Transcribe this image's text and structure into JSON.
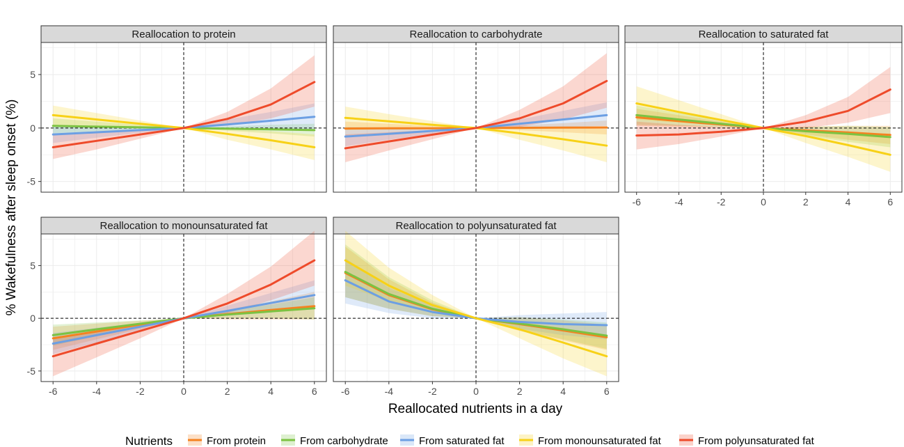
{
  "chart_data": {
    "type": "line",
    "ylabel": "% Wakefulness after sleep onset (%)",
    "xlabel": "Reallocated nutrients in a day",
    "xlim": [
      -6,
      6
    ],
    "ylim": [
      -6,
      8
    ],
    "x_ticks": [
      -6,
      -4,
      -2,
      0,
      2,
      4,
      6
    ],
    "y_ticks": [
      -5,
      0,
      5
    ],
    "grid": true,
    "reference_lines": {
      "x": 0,
      "y": 0,
      "style": "dashed"
    },
    "legend": {
      "title": "Nutrients",
      "position": "bottom",
      "entries": [
        {
          "name": "From protein",
          "color": "#F58220"
        },
        {
          "name": "From carbohydrate",
          "color": "#7CC242"
        },
        {
          "name": "From saturated fat",
          "color": "#6C9FE3"
        },
        {
          "name": "From monounsaturated fat",
          "color": "#F7D117"
        },
        {
          "name": "From polyunsaturated fat",
          "color": "#EE4B2B"
        }
      ]
    },
    "x": [
      -6,
      -4,
      -2,
      0,
      2,
      4,
      6
    ],
    "panels": [
      {
        "title": "Reallocation to protein",
        "series": [
          {
            "name": "From carbohydrate",
            "color": "#7CC242",
            "values": [
              0.2,
              0.13,
              0.06,
              0,
              -0.06,
              -0.12,
              -0.2
            ],
            "lower": [
              -0.5,
              -0.3,
              -0.15,
              0,
              -0.25,
              -0.5,
              -0.8
            ],
            "upper": [
              0.9,
              0.6,
              0.3,
              0,
              0.15,
              0.3,
              0.4
            ]
          },
          {
            "name": "From saturated fat",
            "color": "#6C9FE3",
            "values": [
              -0.6,
              -0.4,
              -0.2,
              0,
              0.33,
              0.68,
              1.05
            ],
            "lower": [
              -1.4,
              -0.9,
              -0.45,
              0,
              -0.1,
              -0.1,
              -0.1
            ],
            "upper": [
              0.2,
              0.15,
              0.05,
              0,
              0.8,
              1.5,
              2.3
            ]
          },
          {
            "name": "From monounsaturated fat",
            "color": "#F7D117",
            "values": [
              1.2,
              0.8,
              0.4,
              0,
              -0.55,
              -1.15,
              -1.8
            ],
            "lower": [
              0.2,
              0.1,
              0.05,
              0,
              -1.1,
              -2.0,
              -3.0
            ],
            "upper": [
              2.1,
              1.4,
              0.7,
              0,
              -0.05,
              -0.3,
              -0.6
            ]
          },
          {
            "name": "From polyunsaturated fat",
            "color": "#EE4B2B",
            "values": [
              -1.8,
              -1.2,
              -0.6,
              0,
              0.85,
              2.2,
              4.3
            ],
            "lower": [
              -2.9,
              -2.0,
              -1.0,
              0,
              0.2,
              0.9,
              2.0
            ],
            "upper": [
              -0.6,
              -0.4,
              -0.2,
              0,
              1.5,
              3.7,
              6.8
            ]
          }
        ]
      },
      {
        "title": "Reallocation to carbohydrate",
        "series": [
          {
            "name": "From protein",
            "color": "#F58220",
            "values": [
              -0.05,
              -0.03,
              -0.02,
              0,
              0.02,
              0.04,
              0.05
            ],
            "lower": [
              -0.7,
              -0.45,
              -0.25,
              0,
              -0.2,
              -0.4,
              -0.6
            ],
            "upper": [
              0.6,
              0.4,
              0.2,
              0,
              0.25,
              0.45,
              0.7
            ]
          },
          {
            "name": "From saturated fat",
            "color": "#6C9FE3",
            "values": [
              -0.8,
              -0.55,
              -0.27,
              0,
              0.4,
              0.8,
              1.2
            ],
            "lower": [
              -1.7,
              -1.1,
              -0.55,
              0,
              0.0,
              0.1,
              0.2
            ],
            "upper": [
              0.1,
              0.05,
              0.02,
              0,
              0.8,
              1.6,
              2.4
            ]
          },
          {
            "name": "From monounsaturated fat",
            "color": "#F7D117",
            "values": [
              0.95,
              0.63,
              0.3,
              0,
              -0.5,
              -1.05,
              -1.65
            ],
            "lower": [
              -0.2,
              -0.15,
              -0.1,
              0,
              -1.1,
              -2.1,
              -3.2
            ],
            "upper": [
              2.0,
              1.3,
              0.65,
              0,
              0.1,
              0.05,
              -0.1
            ]
          },
          {
            "name": "From polyunsaturated fat",
            "color": "#EE4B2B",
            "values": [
              -1.9,
              -1.25,
              -0.62,
              0,
              0.9,
              2.3,
              4.4
            ],
            "lower": [
              -3.2,
              -2.1,
              -1.05,
              0,
              0.1,
              0.8,
              1.9
            ],
            "upper": [
              -0.6,
              -0.4,
              -0.2,
              0,
              1.7,
              3.9,
              7.0
            ]
          }
        ]
      },
      {
        "title": "Reallocation to saturated fat",
        "series": [
          {
            "name": "From protein",
            "color": "#F58220",
            "values": [
              1.0,
              0.65,
              0.32,
              0,
              -0.22,
              -0.42,
              -0.65
            ],
            "lower": [
              0.2,
              0.1,
              0.05,
              0,
              -0.6,
              -1.1,
              -1.5
            ],
            "upper": [
              1.8,
              1.2,
              0.6,
              0,
              0.15,
              0.2,
              0.2
            ]
          },
          {
            "name": "From carbohydrate",
            "color": "#7CC242",
            "values": [
              1.2,
              0.8,
              0.4,
              0,
              -0.3,
              -0.55,
              -0.85
            ],
            "lower": [
              0.3,
              0.2,
              0.1,
              0,
              -0.7,
              -1.3,
              -1.8
            ],
            "upper": [
              2.1,
              1.4,
              0.7,
              0,
              0.1,
              0.2,
              0.1
            ]
          },
          {
            "name": "From monounsaturated fat",
            "color": "#F7D117",
            "values": [
              2.3,
              1.5,
              0.75,
              0,
              -0.75,
              -1.6,
              -2.5
            ],
            "lower": [
              0.8,
              0.5,
              0.25,
              0,
              -1.4,
              -2.7,
              -4.1
            ],
            "upper": [
              3.9,
              2.6,
              1.3,
              0,
              -0.1,
              -0.4,
              -0.8
            ]
          },
          {
            "name": "From polyunsaturated fat",
            "color": "#EE4B2B",
            "values": [
              -0.7,
              -0.6,
              -0.35,
              0,
              0.6,
              1.6,
              3.6
            ],
            "lower": [
              -2.0,
              -1.5,
              -0.8,
              0,
              0.0,
              0.5,
              1.4
            ],
            "upper": [
              0.6,
              0.3,
              0.1,
              0,
              1.2,
              2.9,
              5.7
            ]
          }
        ]
      },
      {
        "title": "Reallocation to monounsaturated fat",
        "series": [
          {
            "name": "From protein",
            "color": "#F58220",
            "values": [
              -1.9,
              -1.25,
              -0.6,
              0,
              0.4,
              0.78,
              1.15
            ],
            "lower": [
              -3.0,
              -2.0,
              -1.0,
              0,
              -0.1,
              -0.1,
              -0.1
            ],
            "upper": [
              -0.8,
              -0.5,
              -0.25,
              0,
              0.8,
              1.6,
              2.5
            ]
          },
          {
            "name": "From carbohydrate",
            "color": "#7CC242",
            "values": [
              -1.6,
              -1.05,
              -0.52,
              0,
              0.35,
              0.65,
              0.95
            ],
            "lower": [
              -2.6,
              -1.7,
              -0.85,
              0,
              0.0,
              0.0,
              -0.1
            ],
            "upper": [
              -0.6,
              -0.4,
              -0.2,
              0,
              0.7,
              1.3,
              2.0
            ]
          },
          {
            "name": "From saturated fat",
            "color": "#6C9FE3",
            "values": [
              -2.4,
              -1.6,
              -0.8,
              0,
              0.7,
              1.45,
              2.2
            ],
            "lower": [
              -3.4,
              -2.3,
              -1.15,
              0,
              0.25,
              0.55,
              0.9
            ],
            "upper": [
              -1.4,
              -0.9,
              -0.45,
              0,
              1.2,
              2.4,
              3.6
            ]
          },
          {
            "name": "From polyunsaturated fat",
            "color": "#EE4B2B",
            "values": [
              -3.6,
              -2.4,
              -1.2,
              0,
              1.4,
              3.2,
              5.5
            ],
            "lower": [
              -5.5,
              -3.7,
              -1.9,
              0,
              0.5,
              1.7,
              3.1
            ],
            "upper": [
              -1.8,
              -1.2,
              -0.6,
              0,
              2.3,
              4.9,
              8.3
            ]
          }
        ]
      },
      {
        "title": "Reallocation to polyunsaturated fat",
        "series": [
          {
            "name": "From protein",
            "color": "#F58220",
            "values": [
              4.3,
              2.2,
              0.85,
              0,
              -0.55,
              -1.15,
              -1.8
            ],
            "lower": [
              2.0,
              0.9,
              0.2,
              0,
              -1.2,
              -2.1,
              -3.0
            ],
            "upper": [
              6.8,
              3.7,
              1.5,
              0,
              0.1,
              -0.2,
              -0.6
            ]
          },
          {
            "name": "From carbohydrate",
            "color": "#7CC242",
            "values": [
              4.4,
              2.3,
              0.9,
              0,
              -0.5,
              -1.05,
              -1.65
            ],
            "lower": [
              2.0,
              0.9,
              0.2,
              0,
              -1.1,
              -2.0,
              -2.9
            ],
            "upper": [
              7.0,
              3.9,
              1.7,
              0,
              0.1,
              -0.1,
              -0.4
            ]
          },
          {
            "name": "From saturated fat",
            "color": "#6C9FE3",
            "values": [
              3.6,
              1.6,
              0.6,
              0,
              -0.35,
              -0.55,
              -0.65
            ],
            "lower": [
              1.4,
              0.5,
              0.0,
              0,
              -1.0,
              -1.6,
              -2.0
            ],
            "upper": [
              5.7,
              2.9,
              1.2,
              0,
              0.3,
              0.45,
              0.6
            ]
          },
          {
            "name": "From monounsaturated fat",
            "color": "#F7D117",
            "values": [
              5.5,
              3.1,
              1.25,
              0,
              -1.05,
              -2.3,
              -3.6
            ],
            "lower": [
              3.1,
              1.6,
              0.5,
              0,
              -1.9,
              -3.8,
              -5.5
            ],
            "upper": [
              8.3,
              4.8,
              2.2,
              0,
              -0.3,
              -0.9,
              -1.8
            ]
          }
        ]
      }
    ]
  }
}
